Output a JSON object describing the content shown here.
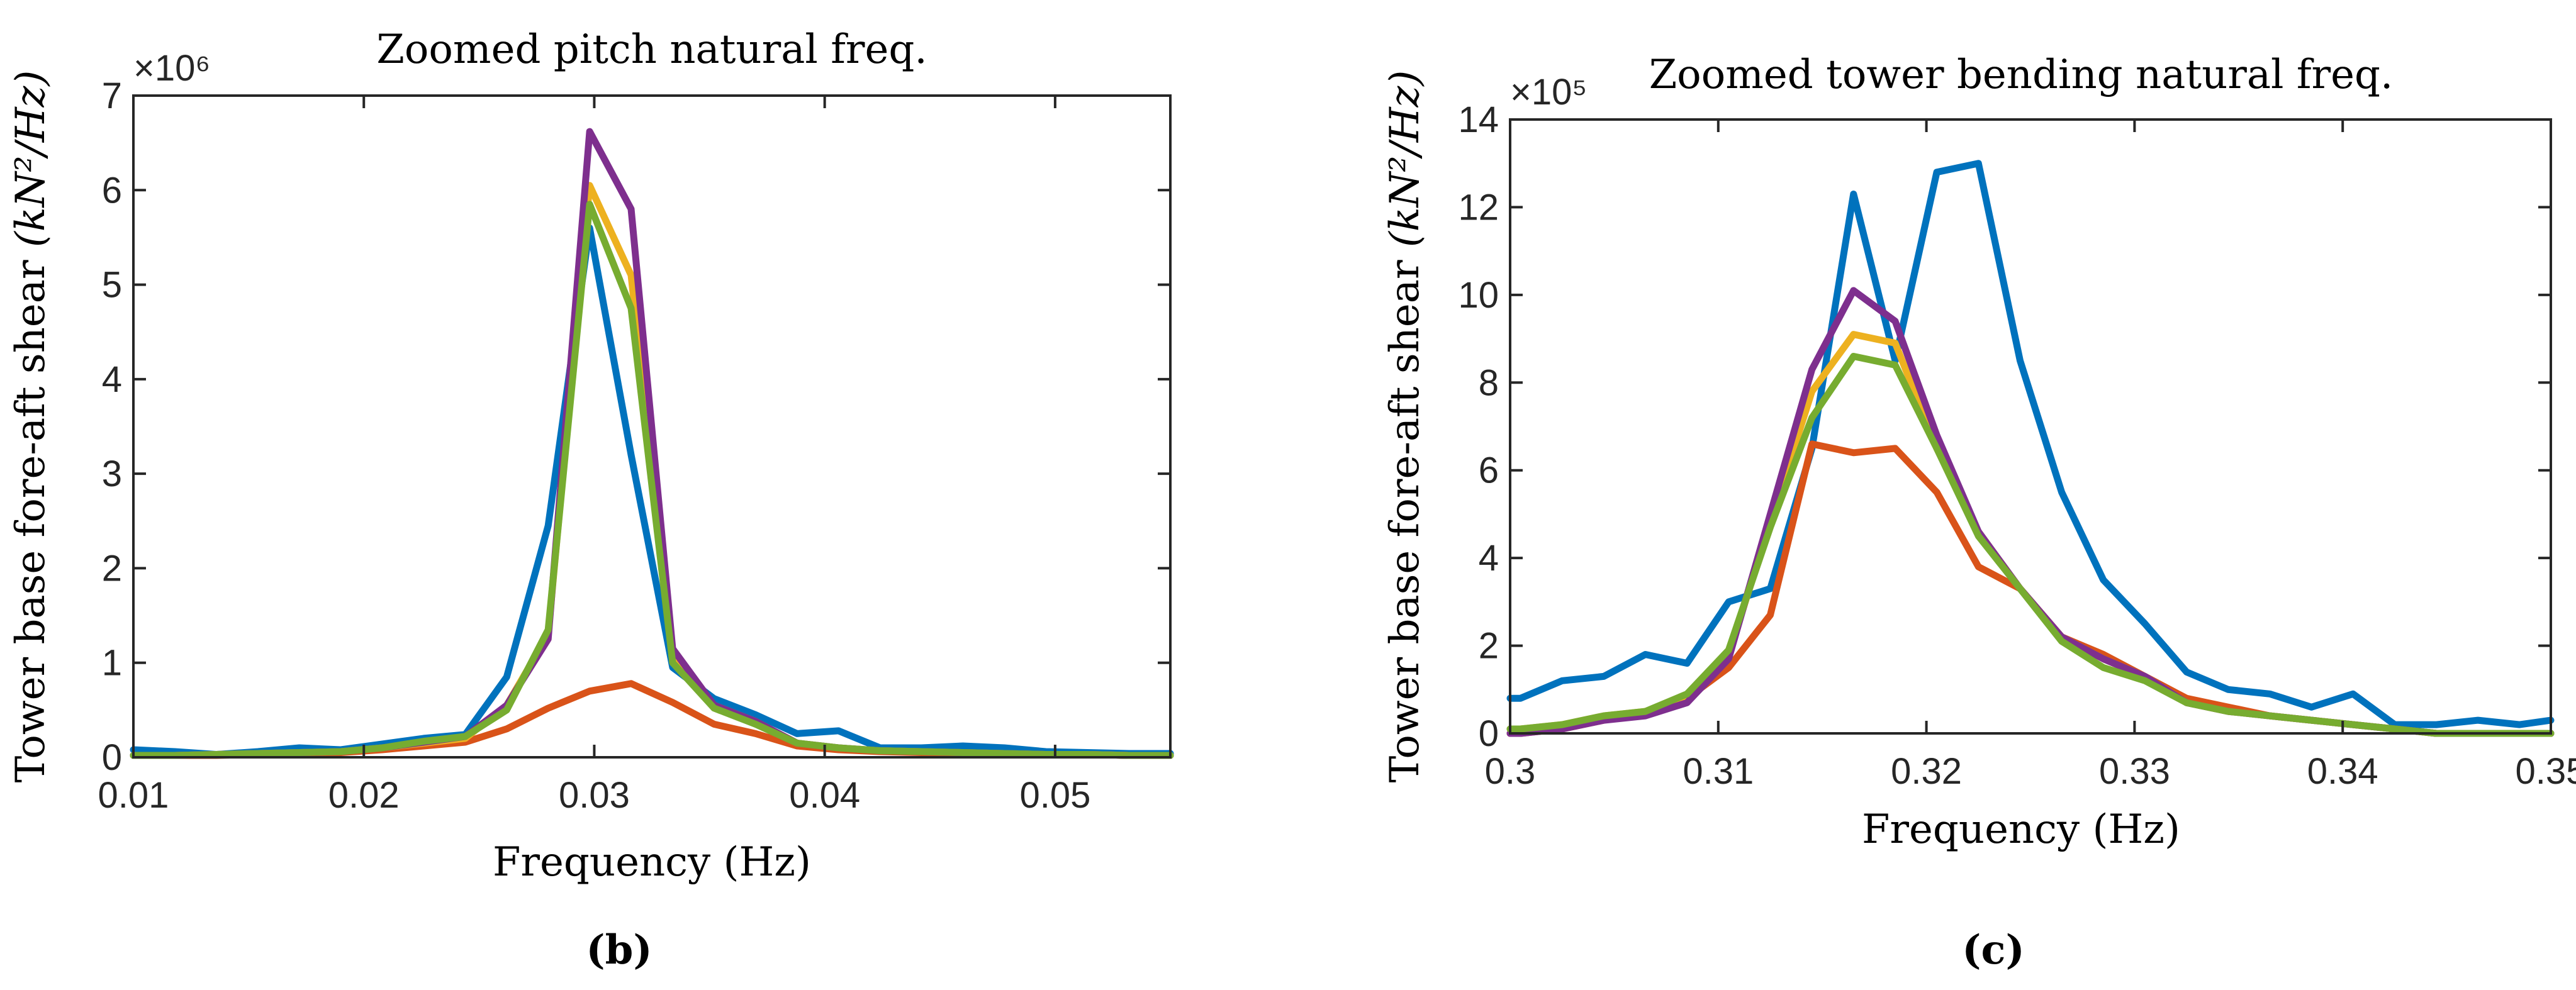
{
  "chart_data": [
    {
      "id": "b",
      "type": "line",
      "title": "Zoomed pitch natural freq.",
      "xlabel": "Frequency (Hz)",
      "ylabel_text": "Tower base fore-aft shear ",
      "ylabel_unit": "(kN²/Hz)",
      "exponent_label": "×10⁶",
      "caption": "(b)",
      "xlim": [
        0.01,
        0.055
      ],
      "ylim": [
        0,
        7
      ],
      "xticks": [
        0.01,
        0.02,
        0.03,
        0.04,
        0.05
      ],
      "xtick_labels": [
        "0.01",
        "0.02",
        "0.03",
        "0.04",
        "0.05"
      ],
      "yticks": [
        0,
        1,
        2,
        3,
        4,
        5,
        6,
        7
      ],
      "ytick_labels": [
        "0",
        "1",
        "2",
        "3",
        "4",
        "5",
        "6",
        "7"
      ],
      "x": [
        0.01,
        0.0118,
        0.0136,
        0.0154,
        0.0172,
        0.019,
        0.0208,
        0.0226,
        0.0244,
        0.0262,
        0.028,
        0.0298,
        0.0316,
        0.0334,
        0.0352,
        0.037,
        0.0388,
        0.0406,
        0.0424,
        0.0442,
        0.046,
        0.0478,
        0.0496,
        0.0514,
        0.0532,
        0.055
      ],
      "series": [
        {
          "name": "series-1",
          "color": "#0072BD",
          "values": [
            0.08,
            0.06,
            0.03,
            0.06,
            0.1,
            0.08,
            0.14,
            0.2,
            0.24,
            0.85,
            2.45,
            5.6,
            3.2,
            0.95,
            0.62,
            0.45,
            0.25,
            0.28,
            0.1,
            0.1,
            0.12,
            0.1,
            0.06,
            0.05,
            0.04,
            0.04
          ]
        },
        {
          "name": "series-2",
          "color": "#D95319",
          "values": [
            0.02,
            0.02,
            0.02,
            0.03,
            0.04,
            0.05,
            0.08,
            0.12,
            0.16,
            0.3,
            0.52,
            0.7,
            0.78,
            0.58,
            0.35,
            0.25,
            0.12,
            0.08,
            0.06,
            0.05,
            0.04,
            0.03,
            0.03,
            0.03,
            0.02,
            0.02
          ]
        },
        {
          "name": "series-3",
          "color": "#EDB120",
          "values": [
            0.02,
            0.02,
            0.03,
            0.04,
            0.05,
            0.06,
            0.1,
            0.15,
            0.2,
            0.55,
            1.3,
            6.05,
            5.1,
            1.05,
            0.55,
            0.38,
            0.15,
            0.1,
            0.07,
            0.06,
            0.05,
            0.04,
            0.03,
            0.03,
            0.02,
            0.02
          ]
        },
        {
          "name": "series-4",
          "color": "#7E2F8E",
          "values": [
            0.02,
            0.02,
            0.03,
            0.04,
            0.05,
            0.06,
            0.1,
            0.16,
            0.22,
            0.55,
            1.25,
            6.62,
            5.8,
            1.15,
            0.55,
            0.38,
            0.15,
            0.1,
            0.07,
            0.06,
            0.05,
            0.04,
            0.03,
            0.03,
            0.02,
            0.02
          ]
        },
        {
          "name": "series-5",
          "color": "#77AC30",
          "values": [
            0.02,
            0.02,
            0.03,
            0.04,
            0.05,
            0.06,
            0.1,
            0.17,
            0.22,
            0.5,
            1.35,
            5.85,
            4.75,
            1.0,
            0.52,
            0.35,
            0.15,
            0.1,
            0.07,
            0.06,
            0.05,
            0.04,
            0.03,
            0.03,
            0.02,
            0.02
          ]
        }
      ]
    },
    {
      "id": "c",
      "type": "line",
      "title": "Zoomed tower bending natural freq.",
      "xlabel": "Frequency (Hz)",
      "ylabel_text": "Tower base fore-aft shear ",
      "ylabel_unit": "(kN²/Hz)",
      "exponent_label": "×10⁵",
      "caption": "(c)",
      "xlim": [
        0.3,
        0.35
      ],
      "ylim": [
        0,
        14
      ],
      "xticks": [
        0.3,
        0.31,
        0.32,
        0.33,
        0.34,
        0.35
      ],
      "xtick_labels": [
        "0.3",
        "0.31",
        "0.32",
        "0.33",
        "0.34",
        "0.35"
      ],
      "yticks": [
        0,
        2,
        4,
        6,
        8,
        10,
        12,
        14
      ],
      "ytick_labels": [
        "0",
        "2",
        "4",
        "6",
        "8",
        "10",
        "12",
        "14"
      ],
      "x": [
        0.3,
        0.3005,
        0.3025,
        0.3045,
        0.3065,
        0.3085,
        0.3105,
        0.3125,
        0.3145,
        0.3165,
        0.3185,
        0.3205,
        0.3225,
        0.3245,
        0.3265,
        0.3285,
        0.3305,
        0.3325,
        0.3345,
        0.3365,
        0.3385,
        0.3405,
        0.3425,
        0.3445,
        0.3465,
        0.3485,
        0.35
      ],
      "series": [
        {
          "name": "series-1",
          "color": "#0072BD",
          "values": [
            0.8,
            0.8,
            1.2,
            1.3,
            1.8,
            1.6,
            3.0,
            3.3,
            6.5,
            12.3,
            8.5,
            12.8,
            13.0,
            8.5,
            5.5,
            3.5,
            2.5,
            1.4,
            1.0,
            0.9,
            0.6,
            0.9,
            0.2,
            0.2,
            0.3,
            0.2,
            0.3
          ]
        },
        {
          "name": "series-2",
          "color": "#D95319",
          "values": [
            0.0,
            0.0,
            0.1,
            0.3,
            0.5,
            0.8,
            1.5,
            2.7,
            6.6,
            6.4,
            6.5,
            5.5,
            3.8,
            3.3,
            2.2,
            1.8,
            1.3,
            0.8,
            0.6,
            0.4,
            0.3,
            0.2,
            0.1,
            0.0,
            0.0,
            0.0,
            0.0
          ]
        },
        {
          "name": "series-3",
          "color": "#EDB120",
          "values": [
            0.1,
            0.1,
            0.2,
            0.4,
            0.5,
            0.8,
            1.8,
            4.8,
            7.8,
            9.1,
            8.9,
            6.5,
            4.6,
            3.3,
            2.2,
            1.7,
            1.3,
            0.7,
            0.5,
            0.4,
            0.3,
            0.2,
            0.1,
            0.0,
            0.0,
            0.0,
            0.0
          ]
        },
        {
          "name": "series-4",
          "color": "#7E2F8E",
          "values": [
            0.0,
            0.0,
            0.1,
            0.3,
            0.4,
            0.7,
            1.7,
            5.0,
            8.3,
            10.1,
            9.4,
            6.8,
            4.6,
            3.3,
            2.2,
            1.7,
            1.3,
            0.7,
            0.5,
            0.4,
            0.3,
            0.2,
            0.1,
            0.0,
            0.0,
            0.0,
            0.0
          ]
        },
        {
          "name": "series-5",
          "color": "#77AC30",
          "values": [
            0.1,
            0.1,
            0.2,
            0.4,
            0.5,
            0.9,
            1.9,
            4.7,
            7.2,
            8.6,
            8.4,
            6.5,
            4.5,
            3.3,
            2.1,
            1.5,
            1.2,
            0.7,
            0.5,
            0.4,
            0.3,
            0.2,
            0.1,
            0.0,
            0.0,
            0.0,
            0.0
          ]
        }
      ]
    }
  ]
}
